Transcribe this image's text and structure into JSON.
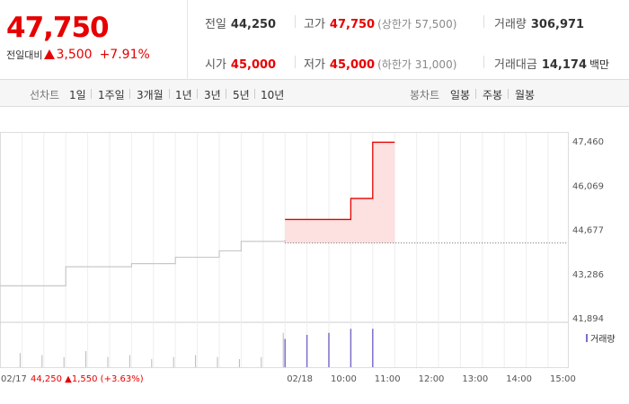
{
  "summary": {
    "current_price": "47,750",
    "change_label": "전일대비",
    "change_amount": "3,500",
    "change_pct": "+7.91%"
  },
  "stats": {
    "prev_close": {
      "label": "전일",
      "value": "44,250"
    },
    "high": {
      "label": "고가",
      "value": "47,750",
      "sub": "(상한가 57,500)"
    },
    "volume": {
      "label": "거래량",
      "value": "306,971"
    },
    "open": {
      "label": "시가",
      "value": "45,000"
    },
    "low": {
      "label": "저가",
      "value": "45,000",
      "sub": "(하한가 31,000)"
    },
    "amount": {
      "label": "거래대금",
      "value": "14,174",
      "unit": "백만"
    }
  },
  "line_chart_label": "선차트",
  "line_periods": [
    {
      "label": "1일",
      "active": true
    },
    {
      "label": "1주일",
      "active": false
    },
    {
      "label": "3개월",
      "active": false
    },
    {
      "label": "1년",
      "active": false
    },
    {
      "label": "3년",
      "active": false
    },
    {
      "label": "5년",
      "active": false
    },
    {
      "label": "10년",
      "active": false
    }
  ],
  "candle_chart_label": "봉차트",
  "candle_periods": [
    {
      "label": "일봉"
    },
    {
      "label": "주봉"
    },
    {
      "label": "월봉"
    }
  ],
  "colors": {
    "up": "#e60000",
    "fill": "#fde0e0",
    "prev_line": "#c8c8c8",
    "volume_prev": "#b8b8b8",
    "volume_today": "#7a6ec8",
    "active_tab": "#1f55d8"
  },
  "chart_data": {
    "type": "line",
    "y_ticks": [
      "47,460",
      "46,069",
      "44,677",
      "43,286",
      "41,894"
    ],
    "ylim": [
      41894,
      47460
    ],
    "x_labels": [
      "02/18",
      "10:00",
      "11:00",
      "12:00",
      "13:00",
      "14:00",
      "15:00"
    ],
    "prev_day_label": "02/17",
    "prev_day_close": "44,250",
    "prev_day_change": "1,550",
    "prev_day_change_pct": "(+3.63%)",
    "baseline": 44250,
    "series": [
      {
        "x": [
          0,
          2,
          3,
          6,
          8,
          10,
          11,
          12,
          13
        ],
        "y": [
          42900,
          42900,
          43500,
          43600,
          43800,
          44000,
          44300,
          44300,
          44350
        ]
      },
      {
        "x": [
          13,
          15,
          16,
          17,
          18
        ],
        "y": [
          44990,
          44990,
          45650,
          47420,
          47420
        ]
      }
    ],
    "volume_label": "거래량",
    "volume_prev": [
      0.35,
      0.3,
      0.25,
      0.4,
      0.25,
      0.3,
      0.2,
      0.25,
      0.3,
      0.25,
      0.2,
      0.25,
      0.85
    ],
    "volume_today": [
      0.7,
      0.8,
      0.85,
      0.95,
      0.95
    ]
  }
}
